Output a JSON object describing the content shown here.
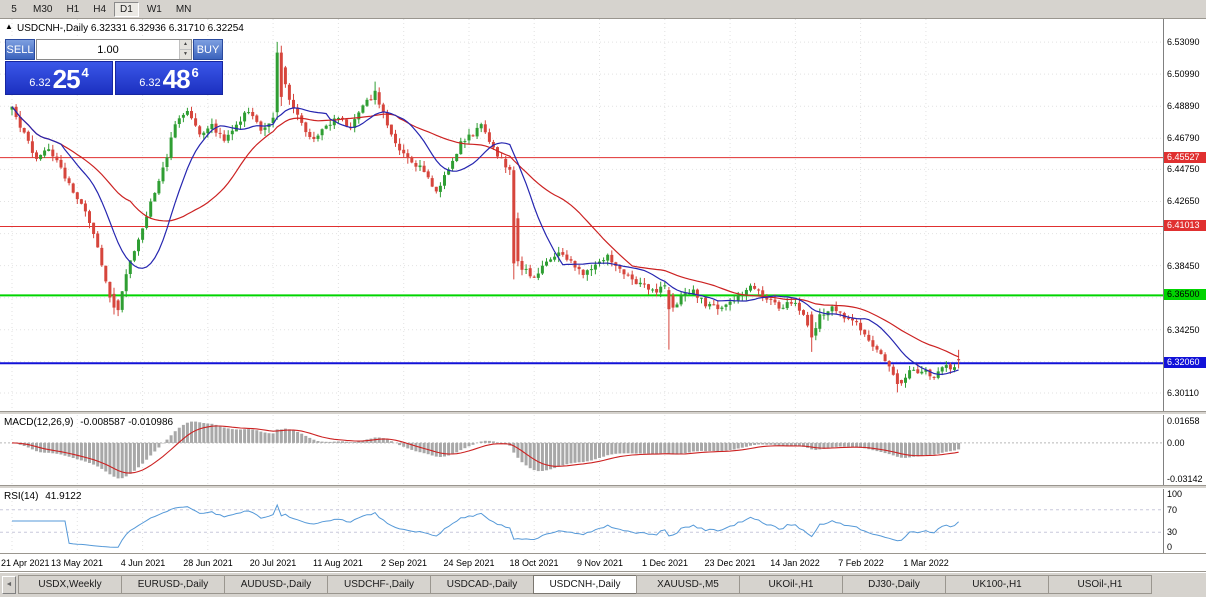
{
  "icons": {
    "one_click_toggle": "▲",
    "volume_up": "▲",
    "volume_down": "▼",
    "tab_scroll_left": "◄"
  },
  "colors": {
    "candle_up": "#2f9e33",
    "candle_down": "#d6453c",
    "ma_fast": "#2626b0",
    "ma_slow": "#cc2222",
    "macd_hist": "#a8a8a8",
    "macd_signal": "#cc2222",
    "rsi_line": "#5599d8",
    "grid": "#e2e2e2",
    "level_dash": "#c8c8dc"
  },
  "toolbar": {
    "periods": [
      "5",
      "M30",
      "H1",
      "H4",
      "D1",
      "W1",
      "MN"
    ],
    "active_period": "D1"
  },
  "chart_header": {
    "symbol_line": "USDCNH-,Daily  6.32331 6.32936 6.31710 6.32254"
  },
  "trade_panel": {
    "sell_label": "SELL",
    "buy_label": "BUY",
    "volume": "1.00",
    "sell_price_small": "6.32",
    "sell_price_big": "25",
    "sell_price_sup": "4",
    "buy_price_small": "6.32",
    "buy_price_big": "48",
    "buy_price_sup": "6"
  },
  "price_axis": {
    "labels": [
      "6.53090",
      "6.50990",
      "6.48890",
      "6.46790",
      "6.44750",
      "6.42650",
      "6.40550",
      "6.38450",
      "6.36350",
      "6.34250",
      "6.32150",
      "6.30110"
    ]
  },
  "indicators": {
    "macd": {
      "label": "MACD(12,26,9)",
      "values": "-0.008587 -0.010986",
      "axis": [
        "0.01658",
        "0.00",
        "-0.03142"
      ]
    },
    "rsi": {
      "label": "RSI(14)",
      "value": "41.9122",
      "axis": [
        "100",
        "70",
        "30",
        "0"
      ],
      "levels": [
        70,
        30
      ]
    }
  },
  "date_axis": {
    "labels": [
      "21 Apr 2021",
      "13 May 2021",
      "4 Jun 2021",
      "28 Jun 2021",
      "20 Jul 2021",
      "11 Aug 2021",
      "2 Sep 2021",
      "24 Sep 2021",
      "18 Oct 2021",
      "9 Nov 2021",
      "1 Dec 2021",
      "23 Dec 2021",
      "14 Jan 2022",
      "7 Feb 2022",
      "1 Mar 2022"
    ]
  },
  "tabs": {
    "items": [
      "USDX,Weekly",
      "EURUSD-,Daily",
      "AUDUSD-,Daily",
      "USDCHF-,Daily",
      "USDCAD-,Daily",
      "USDCNH-,Daily",
      "XAUUSD-,M5",
      "UKOil-,H1",
      "DJ30-,Daily",
      "UK100-,H1",
      "USOil-,H1"
    ],
    "active": "USDCNH-,Daily"
  },
  "chart_data": {
    "type": "candlestick",
    "symbol": "USDCNH-",
    "timeframe": "Daily",
    "last_bar": {
      "open": 6.32331,
      "high": 6.32936,
      "low": 6.3171,
      "close": 6.32254
    },
    "bar_count": 233,
    "bars_per_label": 16,
    "price_range": {
      "top": 6.546,
      "bottom": 6.2893
    },
    "horizontal_lines": [
      {
        "price": 6.45527,
        "label": "6.45527",
        "color": "#e03030",
        "text_color": "#ffffff",
        "width": 1
      },
      {
        "price": 6.41013,
        "label": "6.41013",
        "color": "#e03030",
        "text_color": "#ffffff",
        "width": 1
      },
      {
        "price": 6.365,
        "label": "6.36500",
        "color": "#00d400",
        "text_color": "#000000",
        "width": 2
      },
      {
        "price": 6.3206,
        "label": "6.32060",
        "color": "#1212d8",
        "text_color": "#ffffff",
        "width": 2
      }
    ],
    "moving_averages": [
      {
        "period": 13,
        "color": "#2626b0"
      },
      {
        "period": 30,
        "color": "#cc2222"
      }
    ],
    "macd_params": {
      "fast": 12,
      "slow": 26,
      "signal": 9
    },
    "rsi_period": 14,
    "price_waypoints": [
      [
        0,
        6.487
      ],
      [
        3,
        6.47
      ],
      [
        6,
        6.455
      ],
      [
        9,
        6.462
      ],
      [
        12,
        6.448
      ],
      [
        15,
        6.433
      ],
      [
        18,
        6.421
      ],
      [
        21,
        6.396
      ],
      [
        24,
        6.364
      ],
      [
        26,
        6.357
      ],
      [
        28,
        6.38
      ],
      [
        31,
        6.401
      ],
      [
        34,
        6.427
      ],
      [
        37,
        6.447
      ],
      [
        40,
        6.477
      ],
      [
        43,
        6.487
      ],
      [
        46,
        6.471
      ],
      [
        49,
        6.477
      ],
      [
        52,
        6.466
      ],
      [
        55,
        6.477
      ],
      [
        58,
        6.486
      ],
      [
        61,
        6.474
      ],
      [
        64,
        6.481
      ],
      [
        66,
        6.515
      ],
      [
        68,
        6.494
      ],
      [
        71,
        6.477
      ],
      [
        74,
        6.467
      ],
      [
        77,
        6.477
      ],
      [
        80,
        6.481
      ],
      [
        83,
        6.474
      ],
      [
        86,
        6.489
      ],
      [
        89,
        6.497
      ],
      [
        92,
        6.477
      ],
      [
        95,
        6.461
      ],
      [
        98,
        6.453
      ],
      [
        101,
        6.446
      ],
      [
        104,
        6.434
      ],
      [
        107,
        6.446
      ],
      [
        110,
        6.466
      ],
      [
        113,
        6.471
      ],
      [
        115,
        6.477
      ],
      [
        118,
        6.461
      ],
      [
        120,
        6.454
      ],
      [
        122,
        6.447
      ],
      [
        124,
        6.386
      ],
      [
        126,
        6.381
      ],
      [
        128,
        6.377
      ],
      [
        131,
        6.387
      ],
      [
        134,
        6.394
      ],
      [
        137,
        6.387
      ],
      [
        140,
        6.379
      ],
      [
        143,
        6.384
      ],
      [
        146,
        6.39
      ],
      [
        149,
        6.383
      ],
      [
        152,
        6.375
      ],
      [
        155,
        6.371
      ],
      [
        158,
        6.368
      ],
      [
        160,
        6.37
      ],
      [
        162,
        6.356
      ],
      [
        164,
        6.364
      ],
      [
        167,
        6.368
      ],
      [
        170,
        6.359
      ],
      [
        173,
        6.357
      ],
      [
        176,
        6.36
      ],
      [
        179,
        6.367
      ],
      [
        182,
        6.371
      ],
      [
        185,
        6.364
      ],
      [
        188,
        6.357
      ],
      [
        191,
        6.361
      ],
      [
        194,
        6.353
      ],
      [
        196,
        6.338
      ],
      [
        198,
        6.351
      ],
      [
        201,
        6.357
      ],
      [
        204,
        6.351
      ],
      [
        207,
        6.347
      ],
      [
        210,
        6.337
      ],
      [
        212,
        6.329
      ],
      [
        214,
        6.321
      ],
      [
        216,
        6.313
      ],
      [
        218,
        6.308
      ],
      [
        220,
        6.317
      ],
      [
        222,
        6.314
      ],
      [
        224,
        6.317
      ],
      [
        226,
        6.31
      ],
      [
        228,
        6.319
      ],
      [
        230,
        6.317
      ],
      [
        232,
        6.3225
      ]
    ],
    "candle_overrides": [
      {
        "i": 25,
        "o": 6.366,
        "h": 6.37,
        "l": 6.3525,
        "c": 6.357
      },
      {
        "i": 65,
        "o": 6.485,
        "h": 6.531,
        "l": 6.48,
        "c": 6.524
      },
      {
        "i": 66,
        "o": 6.524,
        "h": 6.5285,
        "l": 6.489,
        "c": 6.495
      },
      {
        "i": 89,
        "o": 6.493,
        "h": 6.505,
        "l": 6.49,
        "c": 6.499
      },
      {
        "i": 123,
        "o": 6.447,
        "h": 6.4495,
        "l": 6.3755,
        "c": 6.386
      },
      {
        "i": 161,
        "o": 6.3685,
        "h": 6.3705,
        "l": 6.3295,
        "c": 6.356
      },
      {
        "i": 196,
        "o": 6.3525,
        "h": 6.3545,
        "l": 6.328,
        "c": 6.3375
      },
      {
        "i": 217,
        "o": 6.314,
        "h": 6.3165,
        "l": 6.3015,
        "c": 6.307
      },
      {
        "i": 232,
        "o": 6.32331,
        "h": 6.32936,
        "l": 6.3171,
        "c": 6.32254
      }
    ]
  }
}
